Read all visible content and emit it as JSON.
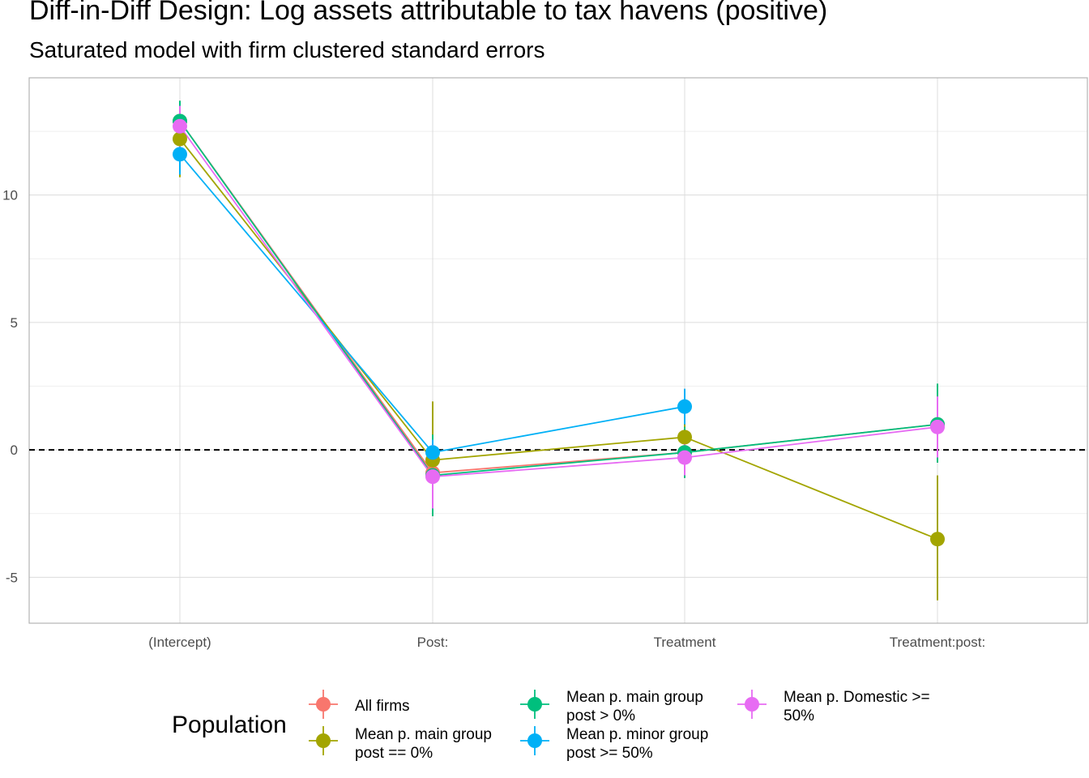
{
  "chart_data": {
    "type": "scatter",
    "title": "Diff-in-Diff Design: Log assets attributable to tax havens (positive)",
    "subtitle": "Saturated model with firm clustered standard errors",
    "categories": [
      "(Intercept)",
      "Post:",
      "Treatment",
      "Treatment:post:"
    ],
    "ylim": [
      -6.8,
      14.6
    ],
    "yticks": [
      -5,
      0,
      5,
      10
    ],
    "ytick_labels": [
      "-5",
      "0",
      "5",
      "10"
    ],
    "reference_line": 0,
    "grid": true,
    "legend": {
      "title": "Population",
      "position": "bottom"
    },
    "series": [
      {
        "name": "All firms",
        "color": "#F8766D",
        "values": [
          12.9,
          -0.9,
          -0.1,
          1.0
        ],
        "lower": [
          12.1,
          -2.5,
          -1.1,
          -0.5
        ],
        "upper": [
          13.7,
          0.7,
          0.9,
          2.5
        ]
      },
      {
        "name": "Mean p. main group\npost == 0%",
        "color": "#A3A500",
        "values": [
          12.2,
          -0.4,
          0.5,
          -3.5
        ],
        "lower": [
          10.7,
          -2.6,
          -0.5,
          -5.9
        ],
        "upper": [
          13.6,
          1.9,
          1.4,
          -1.0
        ]
      },
      {
        "name": "Mean p. main group\npost > 0%",
        "color": "#00BF7D",
        "values": [
          12.9,
          -1.0,
          -0.1,
          1.0
        ],
        "lower": [
          12.1,
          -2.6,
          -1.1,
          -0.5
        ],
        "upper": [
          13.7,
          0.6,
          0.9,
          2.6
        ]
      },
      {
        "name": "Mean p. minor group\npost >= 50%",
        "color": "#00B0F6",
        "values": [
          11.6,
          -0.1,
          1.7,
          null
        ],
        "lower": [
          10.8,
          -0.5,
          1.0,
          null
        ],
        "upper": [
          12.5,
          0.4,
          2.4,
          null
        ]
      },
      {
        "name": "Mean p. Domestic >=\n50%",
        "color": "#E76BF3",
        "values": [
          12.7,
          -1.05,
          -0.3,
          0.9
        ],
        "lower": [
          11.9,
          -2.3,
          -1.0,
          -0.3
        ],
        "upper": [
          13.5,
          0.2,
          0.5,
          2.1
        ]
      }
    ]
  }
}
